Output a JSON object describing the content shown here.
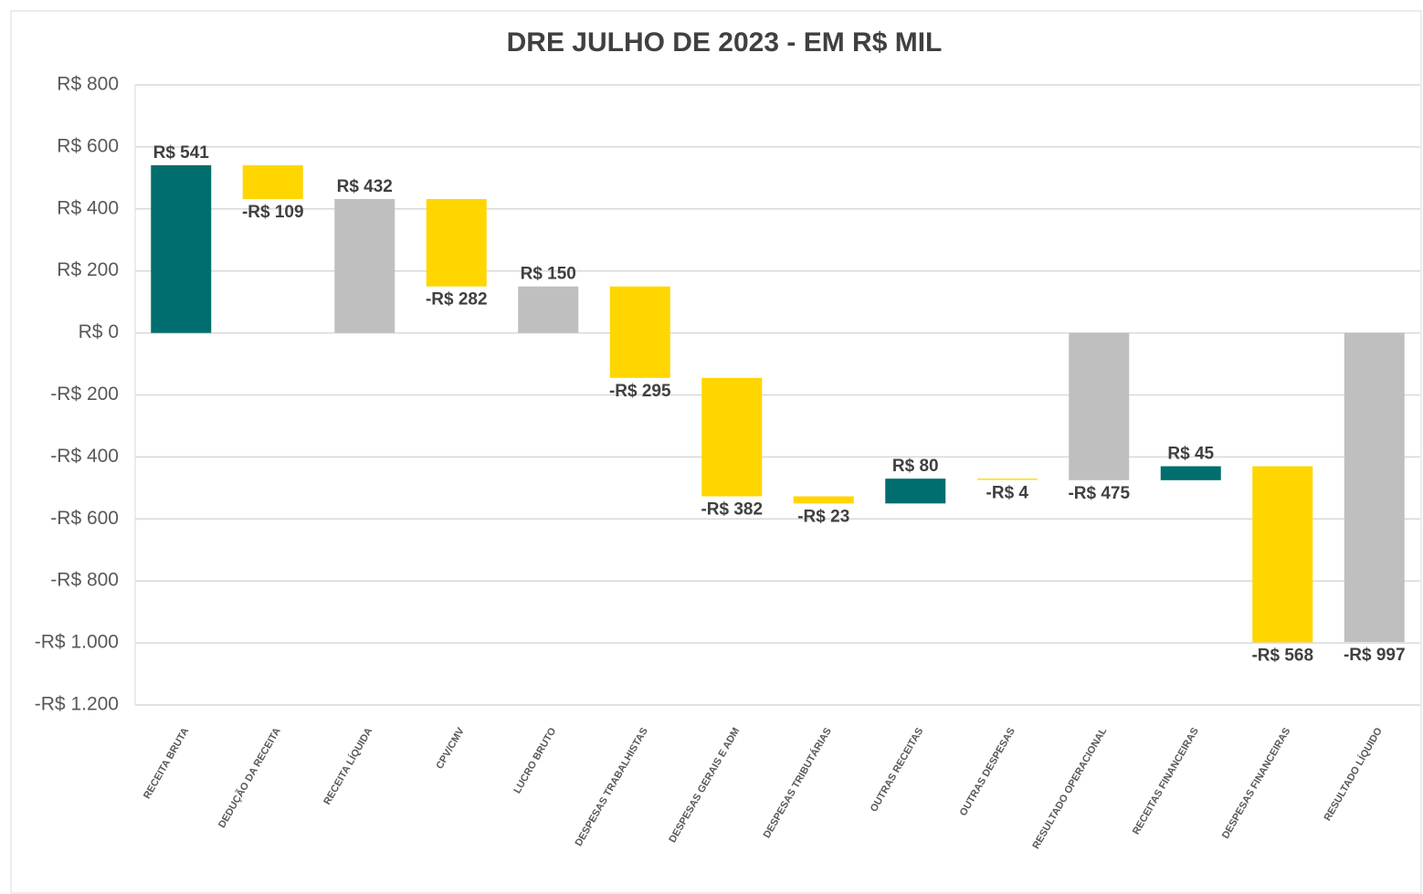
{
  "chart_data": {
    "type": "waterfall",
    "title": "DRE JULHO DE 2023 - EM R$ MIL",
    "categories": [
      "RECEITA BRUTA",
      "DEDUÇÃO DA RECEITA",
      "RECEITA LÍQUIDA",
      "CPV/CMV",
      "LUCRO BRUTO",
      "DESPESAS TRABALHISTAS",
      "DESPESAS GERAIS E ADM",
      "DESPESAS TRIBUTÁRIAS",
      "OUTRAS RECEITAS",
      "OUTRAS DESPESAS",
      "RESULTADO OPERACIONAL",
      "RECEITAS FINANCEIRAS",
      "DESPESAS FINANCEIRAS",
      "RESULTADO LÍQUIDO"
    ],
    "values": [
      541,
      -109,
      432,
      -282,
      150,
      -295,
      -382,
      -23,
      80,
      -4,
      -475,
      45,
      -568,
      -997
    ],
    "value_labels": [
      "R$ 541",
      "-R$ 109",
      "R$ 432",
      "-R$ 282",
      "R$ 150",
      "-R$ 295",
      "-R$ 382",
      "-R$ 23",
      "R$ 80",
      "-R$ 4",
      "-R$ 475",
      "R$ 45",
      "-R$ 568",
      "-R$ 997"
    ],
    "total_indices": [
      2,
      4,
      10,
      13
    ],
    "increase_color": "#006e6e",
    "decrease_color": "#ffd600",
    "total_color": "#bfbfbf",
    "ylim": [
      -1200,
      800
    ],
    "yticks": [
      {
        "value": -1200,
        "label": "-R$ 1.200"
      },
      {
        "value": -1000,
        "label": "-R$ 1.000"
      },
      {
        "value": -800,
        "label": "-R$ 800"
      },
      {
        "value": -600,
        "label": "-R$ 600"
      },
      {
        "value": -400,
        "label": "-R$ 400"
      },
      {
        "value": -200,
        "label": "-R$ 200"
      },
      {
        "value": 0,
        "label": "R$ 0"
      },
      {
        "value": 200,
        "label": "R$ 200"
      },
      {
        "value": 400,
        "label": "R$ 400"
      },
      {
        "value": 600,
        "label": "R$ 600"
      },
      {
        "value": 800,
        "label": "R$ 800"
      }
    ],
    "grid": true
  }
}
